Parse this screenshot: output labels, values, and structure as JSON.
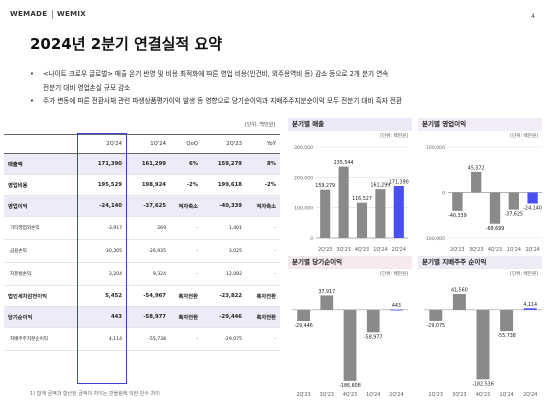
{
  "header": {
    "logo_left": "WEMADE",
    "logo_right": "WEMIX",
    "page_number": "4"
  },
  "title": "2024년 2분기 연결실적 요약",
  "bullets": [
    {
      "marker": "•",
      "lines": [
        "<나이트 크로우 글로벌> 매출 온기 반영 및 비용 최적화에 따른 영업 비용(인건비, 외주용역비 등) 감소 등으로 2개 분기 연속",
        "전분기 대비 영업손실 규모 감소"
      ]
    },
    {
      "marker": "•",
      "lines": [
        "주가 변동에 따른 전환사채 관련 파생상품평가이익 발생 등 영향으로 당기순이익과 지배주주지분순이익 모두 전분기 대비 흑자 전환"
      ]
    }
  ],
  "table": {
    "unit": "[단위: 백만원]",
    "headers": [
      "",
      "2Q'24",
      "1Q'24",
      "QoQ",
      "2Q'23",
      "YoY"
    ],
    "rows": [
      {
        "label": "매출액",
        "kind": "main",
        "shade": true,
        "values": [
          "171,390",
          "161,299",
          "6%",
          "159,279",
          "8%"
        ]
      },
      {
        "label": "영업비용",
        "kind": "main",
        "shade": false,
        "values": [
          "195,529",
          "198,924",
          "-2%",
          "199,618",
          "-2%"
        ]
      },
      {
        "label": "영업이익",
        "kind": "main",
        "shade": true,
        "values": [
          "-24,140",
          "-37,625",
          "적자축소",
          "-40,339",
          "적자축소"
        ]
      },
      {
        "label": "기타영업외손익",
        "kind": "sub",
        "shade": false,
        "values": [
          "-3,917",
          "269",
          "-",
          "1,401",
          "-"
        ]
      },
      {
        "label": "금융손익",
        "kind": "sub",
        "shade": false,
        "values": [
          "30,305",
          "-26,935",
          "-",
          "3,025",
          "-"
        ]
      },
      {
        "label": "지분법손익",
        "kind": "sub",
        "shade": false,
        "values": [
          "3,204",
          "9,324",
          "-",
          "12,092",
          "-"
        ]
      },
      {
        "label": "법인세차감전이익",
        "kind": "main",
        "shade": false,
        "values": [
          "5,452",
          "-54,967",
          "흑자전환",
          "-23,822",
          "흑자전환"
        ]
      },
      {
        "label": "당기순이익",
        "kind": "main",
        "shade": true,
        "values": [
          "443",
          "-58,977",
          "흑자전환",
          "-29,446",
          "흑자전환"
        ]
      },
      {
        "label": "지배주주지분순이익",
        "kind": "sub",
        "shade": false,
        "values": [
          "4,114",
          "-55,738",
          "-",
          "-29,075",
          "-"
        ]
      }
    ]
  },
  "footnote": "1) 합계 금액과 합산된 금액의 차이는 반올림에 의한 단수 차이",
  "chart_data": [
    {
      "type": "bar",
      "title": "분기별 매출",
      "unit": "[단위: 백만원]",
      "categories": [
        "2Q'23",
        "3Q'23",
        "4Q'23",
        "1Q'24",
        "2Q'24"
      ],
      "values": [
        159279,
        235544,
        116527,
        161299,
        171390
      ],
      "value_labels": [
        "159,279",
        "235,544",
        "116,527",
        "161,299",
        "171,390"
      ],
      "ylim": [
        0,
        300000
      ],
      "yticks": [
        0,
        100000,
        200000,
        300000
      ],
      "ytick_labels": [
        "0",
        "100,000",
        "200,000",
        "300,000"
      ],
      "colors": [
        "#8a8a8a",
        "#8a8a8a",
        "#8a8a8a",
        "#8a8a8a",
        "#4a4ff0"
      ]
    },
    {
      "type": "bar",
      "title": "분기별 영업이익",
      "unit": "[단위: 백만원]",
      "categories": [
        "2Q'23",
        "3Q'23",
        "4Q'23",
        "1Q'24",
        "2Q'24"
      ],
      "values": [
        -40339,
        45372,
        -68699,
        -37625,
        -24140
      ],
      "value_labels": [
        "-40,339",
        "45,372",
        "-68,699",
        "-37,625",
        "-24,140"
      ],
      "ylim": [
        -100000,
        100000
      ],
      "yticks": [
        -100000,
        0,
        100000
      ],
      "ytick_labels": [
        "-100,000",
        "0",
        "100,000"
      ],
      "colors": [
        "#8a8a8a",
        "#8a8a8a",
        "#8a8a8a",
        "#8a8a8a",
        "#4a4ff0"
      ]
    },
    {
      "type": "bar",
      "title": "분기별 당기순이익",
      "unit": "[단위: 백만원]",
      "categories": [
        "2Q'23",
        "3Q'23",
        "4Q'23",
        "1Q'24",
        "2Q'24"
      ],
      "values": [
        -29446,
        37917,
        -186608,
        -58977,
        443
      ],
      "value_labels": [
        "-29,446",
        "37,917",
        "-186,608",
        "-58,977",
        "443"
      ],
      "ylim": [
        -200000,
        60000
      ],
      "yticks": [],
      "ytick_labels": [],
      "colors": [
        "#8a8a8a",
        "#8a8a8a",
        "#8a8a8a",
        "#8a8a8a",
        "#4a4ff0"
      ]
    },
    {
      "type": "bar",
      "title": "분기별 지배주주 순이익",
      "unit": "[단위: 백만원]",
      "categories": [
        "2Q'23",
        "3Q'23",
        "4Q'23",
        "1Q'24",
        "2Q'24"
      ],
      "values": [
        -29075,
        41560,
        -182536,
        -55738,
        4114
      ],
      "value_labels": [
        "-29,075",
        "41,560",
        "-182,536",
        "-55,738",
        "4,114"
      ],
      "ylim": [
        -200000,
        60000
      ],
      "yticks": [],
      "ytick_labels": [],
      "colors": [
        "#8a8a8a",
        "#8a8a8a",
        "#8a8a8a",
        "#8a8a8a",
        "#4a4ff0"
      ]
    }
  ]
}
